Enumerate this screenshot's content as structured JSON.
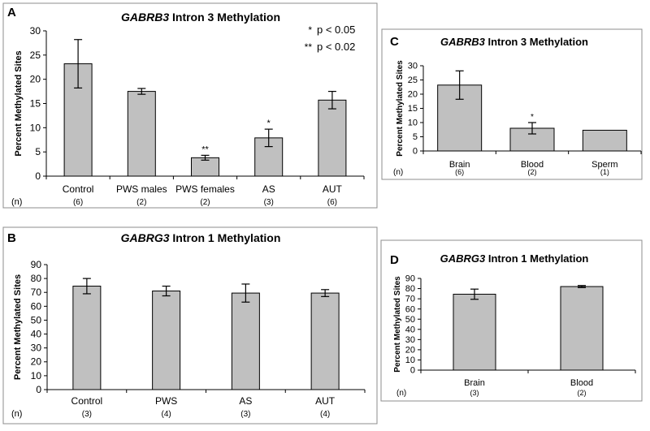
{
  "colors": {
    "bar_fill": "#c0c0c0",
    "bar_stroke": "#000000",
    "panel_fill": "#ffffff",
    "panel_stroke": "#8c8c8c"
  },
  "chart_data": [
    {
      "panel": "A",
      "type": "bar",
      "title_gene": "GABRB3",
      "title_rest": " Intron 3 Methylation",
      "ylabel": "Percent Methylated Sites",
      "ylim": [
        0,
        30
      ],
      "yticks": [
        0,
        5,
        10,
        15,
        20,
        25,
        30
      ],
      "n_label": "(n)",
      "categories": [
        "Control",
        "PWS males",
        "PWS females",
        "AS",
        "AUT"
      ],
      "n": [
        "(6)",
        "(2)",
        "(2)",
        "(3)",
        "(6)"
      ],
      "values": [
        23.2,
        17.5,
        3.8,
        7.9,
        15.7
      ],
      "errors": [
        5.0,
        0.6,
        0.5,
        1.8,
        1.8
      ],
      "significance": [
        "",
        "",
        "**",
        "*",
        ""
      ],
      "legend": [
        {
          "symbol": "*",
          "text": "p < 0.05"
        },
        {
          "symbol": "**",
          "text": "p < 0.02"
        }
      ]
    },
    {
      "panel": "B",
      "type": "bar",
      "title_gene": "GABRG3",
      "title_rest": " Intron 1 Methylation",
      "ylabel": "Percent Methylated Sites",
      "ylim": [
        0,
        90
      ],
      "yticks": [
        0,
        10,
        20,
        30,
        40,
        50,
        60,
        70,
        80,
        90
      ],
      "n_label": "(n)",
      "categories": [
        "Control",
        "PWS",
        "AS",
        "AUT"
      ],
      "n": [
        "(3)",
        "(4)",
        "(3)",
        "(4)"
      ],
      "values": [
        74.5,
        71.0,
        69.5,
        69.5
      ],
      "errors": [
        5.5,
        3.5,
        6.5,
        2.5
      ],
      "significance": [
        "",
        "",
        "",
        ""
      ]
    },
    {
      "panel": "C",
      "type": "bar",
      "title_gene": "GABRB3",
      "title_rest": " Intron 3 Methylation",
      "ylabel": "Percent Methylated Sites",
      "ylim": [
        0,
        30
      ],
      "yticks": [
        0,
        5,
        10,
        15,
        20,
        25,
        30
      ],
      "n_label": "(n)",
      "categories": [
        "Brain",
        "Blood",
        "Sperm"
      ],
      "n": [
        "(6)",
        "(2)",
        "(1)"
      ],
      "values": [
        23.2,
        8.0,
        7.3
      ],
      "errors": [
        5.0,
        2.0,
        0
      ],
      "significance": [
        "",
        "*",
        ""
      ]
    },
    {
      "panel": "D",
      "type": "bar",
      "title_gene": "GABRG3",
      "title_rest": " Intron 1 Methylation",
      "ylabel": "Percent Methylated Sites",
      "ylim": [
        0,
        90
      ],
      "yticks": [
        0,
        10,
        20,
        30,
        40,
        50,
        60,
        70,
        80,
        90
      ],
      "n_label": "(n)",
      "categories": [
        "Brain",
        "Blood"
      ],
      "n": [
        "(3)",
        "(2)"
      ],
      "values": [
        74.5,
        82.0
      ],
      "errors": [
        5.0,
        1.0
      ],
      "significance": [
        "",
        ""
      ]
    }
  ]
}
